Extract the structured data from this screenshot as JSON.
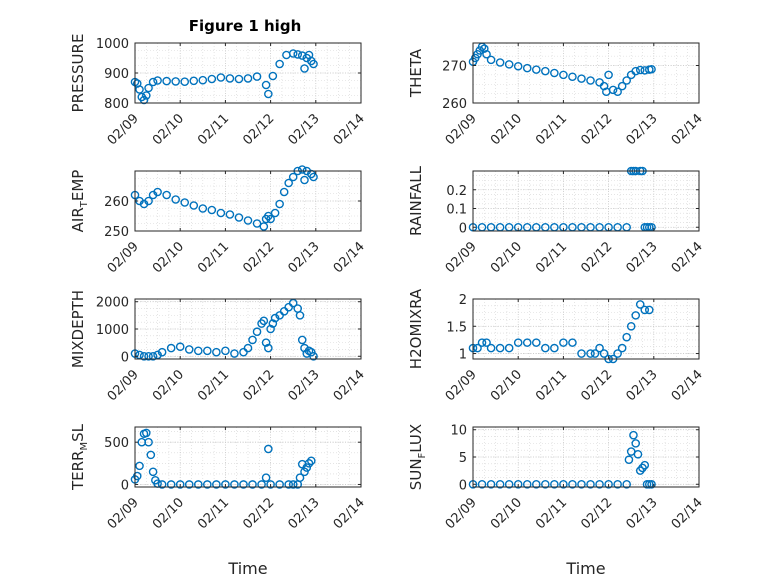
{
  "figure_title": "Figure 1 high",
  "marker_color": "#0072BD",
  "chart_data": [
    {
      "type": "scatter",
      "ylabel": "PRESSURE",
      "ylim": [
        800,
        1000
      ],
      "yticks": [
        800,
        900,
        1000
      ],
      "ytick_labels": [
        "800",
        "900",
        "1000"
      ],
      "xlim": [
        0,
        5
      ],
      "xticks": [
        0,
        1,
        2,
        3,
        4,
        5
      ],
      "xtick_labels": [
        "02/09",
        "02/10",
        "02/11",
        "02/12",
        "02/13",
        "02/14"
      ],
      "xlabel": "",
      "grid": true,
      "marker": "circle",
      "series": [
        {
          "x": [
            0,
            0.05,
            0.1,
            0.15,
            0.2,
            0.25,
            0.3,
            0.4,
            0.5,
            0.7,
            0.9,
            1.1,
            1.3,
            1.5,
            1.7,
            1.9,
            2.1,
            2.3,
            2.5,
            2.7,
            2.9,
            2.95,
            3.05,
            3.2,
            3.35,
            3.5,
            3.6,
            3.7,
            3.75,
            3.8,
            3.85,
            3.9,
            3.95
          ],
          "y": [
            870,
            865,
            845,
            820,
            810,
            825,
            850,
            870,
            875,
            873,
            872,
            871,
            874,
            876,
            880,
            885,
            882,
            880,
            882,
            888,
            860,
            830,
            890,
            930,
            960,
            965,
            962,
            958,
            915,
            950,
            960,
            940,
            930
          ]
        }
      ]
    },
    {
      "type": "scatter",
      "ylabel": "THETA",
      "ylim": [
        260,
        276
      ],
      "yticks": [
        260,
        270
      ],
      "ytick_labels": [
        "260",
        "270"
      ],
      "xlim": [
        0,
        5
      ],
      "xticks": [
        0,
        1,
        2,
        3,
        4,
        5
      ],
      "xtick_labels": [
        "02/09",
        "02/10",
        "02/11",
        "02/12",
        "02/13",
        "02/14"
      ],
      "xlabel": "",
      "grid": true,
      "marker": "circle",
      "series": [
        {
          "x": [
            0,
            0.05,
            0.1,
            0.15,
            0.2,
            0.25,
            0.3,
            0.4,
            0.6,
            0.8,
            1.0,
            1.2,
            1.4,
            1.6,
            1.8,
            2.0,
            2.2,
            2.4,
            2.6,
            2.8,
            2.9,
            2.95,
            3.0,
            3.1,
            3.2,
            3.3,
            3.4,
            3.5,
            3.6,
            3.7,
            3.8,
            3.9,
            3.95
          ],
          "y": [
            271,
            272,
            273,
            274,
            275,
            274.5,
            273,
            271.5,
            270.8,
            270.3,
            269.8,
            269.3,
            268.9,
            268.5,
            268,
            267.5,
            267,
            266.5,
            266,
            265.5,
            264.5,
            263,
            267.5,
            263.5,
            263,
            264.5,
            266,
            267.5,
            268.5,
            268.8,
            268.7,
            268.9,
            269
          ]
        }
      ]
    },
    {
      "type": "scatter",
      "ylabel": "AIR_TEMP",
      "ylim": [
        250,
        270
      ],
      "yticks": [
        250,
        260
      ],
      "ytick_labels": [
        "250",
        "260"
      ],
      "xlim": [
        0,
        5
      ],
      "xticks": [
        0,
        1,
        2,
        3,
        4,
        5
      ],
      "xtick_labels": [
        "02/09",
        "02/10",
        "02/11",
        "02/12",
        "02/13",
        "02/14"
      ],
      "xlabel": "",
      "grid": true,
      "marker": "circle",
      "series": [
        {
          "x": [
            0,
            0.1,
            0.2,
            0.3,
            0.4,
            0.5,
            0.7,
            0.9,
            1.1,
            1.3,
            1.5,
            1.7,
            1.9,
            2.1,
            2.3,
            2.5,
            2.7,
            2.85,
            2.9,
            2.95,
            3.0,
            3.1,
            3.2,
            3.3,
            3.4,
            3.5,
            3.6,
            3.7,
            3.75,
            3.8,
            3.9,
            3.95
          ],
          "y": [
            262,
            260,
            259,
            260,
            262,
            263,
            262,
            260.5,
            259.5,
            258.5,
            257.5,
            257,
            256,
            255.5,
            254.5,
            253.5,
            252.5,
            251.5,
            254,
            255,
            254,
            256,
            259,
            263,
            266,
            268,
            270,
            270.5,
            267,
            270,
            269,
            268
          ]
        }
      ]
    },
    {
      "type": "scatter",
      "ylabel": "RAINFALL",
      "ylim": [
        -0.02,
        0.3
      ],
      "yticks": [
        0,
        0.1,
        0.2
      ],
      "ytick_labels": [
        "0",
        "0.1",
        "0.2"
      ],
      "xlim": [
        0,
        5
      ],
      "xticks": [
        0,
        1,
        2,
        3,
        4,
        5
      ],
      "xtick_labels": [
        "02/09",
        "02/10",
        "02/11",
        "02/12",
        "02/13",
        "02/14"
      ],
      "xlabel": "",
      "grid": true,
      "marker": "circle",
      "series": [
        {
          "x": [
            0,
            0.2,
            0.4,
            0.6,
            0.8,
            1.0,
            1.2,
            1.4,
            1.6,
            1.8,
            2.0,
            2.2,
            2.4,
            2.6,
            2.8,
            3.0,
            3.2,
            3.4,
            3.5,
            3.55,
            3.6,
            3.7,
            3.75,
            3.8,
            3.85,
            3.9,
            3.95
          ],
          "y": [
            0,
            0,
            0,
            0,
            0,
            0,
            0,
            0,
            0,
            0,
            0,
            0,
            0,
            0,
            0,
            0,
            0,
            0,
            0.3,
            0.3,
            0.3,
            0.3,
            0.3,
            0,
            0,
            0,
            0
          ]
        }
      ]
    },
    {
      "type": "scatter",
      "ylabel": "MIXDEPTH",
      "ylim": [
        -100,
        2100
      ],
      "yticks": [
        0,
        1000,
        2000
      ],
      "ytick_labels": [
        "0",
        "1000",
        "2000"
      ],
      "xlim": [
        0,
        5
      ],
      "xticks": [
        0,
        1,
        2,
        3,
        4,
        5
      ],
      "xtick_labels": [
        "02/09",
        "02/10",
        "02/11",
        "02/12",
        "02/13",
        "02/14"
      ],
      "xlabel": "",
      "grid": true,
      "marker": "circle",
      "series": [
        {
          "x": [
            0,
            0.1,
            0.2,
            0.3,
            0.4,
            0.5,
            0.6,
            0.8,
            1.0,
            1.2,
            1.4,
            1.6,
            1.8,
            2.0,
            2.2,
            2.4,
            2.5,
            2.6,
            2.7,
            2.8,
            2.85,
            2.9,
            2.95,
            3.0,
            3.05,
            3.1,
            3.2,
            3.3,
            3.4,
            3.5,
            3.6,
            3.65,
            3.7,
            3.75,
            3.8,
            3.85,
            3.9,
            3.95
          ],
          "y": [
            100,
            50,
            0,
            0,
            0,
            50,
            150,
            300,
            350,
            250,
            200,
            200,
            150,
            200,
            100,
            150,
            300,
            600,
            900,
            1200,
            1300,
            500,
            300,
            1000,
            1200,
            1400,
            1500,
            1650,
            1800,
            1950,
            1750,
            1500,
            600,
            300,
            100,
            200,
            150,
            0
          ]
        }
      ]
    },
    {
      "type": "scatter",
      "ylabel": "H2OMIXRA",
      "ylim": [
        0.9,
        2.0
      ],
      "yticks": [
        1,
        1.5,
        2
      ],
      "ytick_labels": [
        "1",
        "1.5",
        "2"
      ],
      "xlim": [
        0,
        5
      ],
      "xticks": [
        0,
        1,
        2,
        3,
        4,
        5
      ],
      "xtick_labels": [
        "02/09",
        "02/10",
        "02/11",
        "02/12",
        "02/13",
        "02/14"
      ],
      "xlabel": "",
      "grid": true,
      "marker": "circle",
      "series": [
        {
          "x": [
            0,
            0.1,
            0.2,
            0.3,
            0.4,
            0.6,
            0.8,
            1.0,
            1.2,
            1.4,
            1.6,
            1.8,
            2.0,
            2.2,
            2.4,
            2.6,
            2.7,
            2.8,
            2.9,
            3.0,
            3.1,
            3.2,
            3.3,
            3.4,
            3.5,
            3.6,
            3.7,
            3.8,
            3.9
          ],
          "y": [
            1.1,
            1.1,
            1.2,
            1.2,
            1.1,
            1.1,
            1.1,
            1.2,
            1.2,
            1.2,
            1.1,
            1.1,
            1.2,
            1.2,
            1.0,
            1.0,
            1.0,
            1.1,
            1.0,
            0.9,
            0.9,
            1.0,
            1.1,
            1.3,
            1.5,
            1.7,
            1.9,
            1.8,
            1.8
          ]
        }
      ]
    },
    {
      "type": "scatter",
      "ylabel": "TERR_MSL",
      "ylim": [
        -30,
        680
      ],
      "yticks": [
        0,
        500
      ],
      "ytick_labels": [
        "0",
        "500"
      ],
      "xlim": [
        0,
        5
      ],
      "xticks": [
        0,
        1,
        2,
        3,
        4,
        5
      ],
      "xtick_labels": [
        "02/09",
        "02/10",
        "02/11",
        "02/12",
        "02/13",
        "02/14"
      ],
      "xlabel": "Time",
      "grid": true,
      "marker": "circle",
      "series": [
        {
          "x": [
            0,
            0.05,
            0.1,
            0.15,
            0.2,
            0.25,
            0.3,
            0.35,
            0.4,
            0.45,
            0.5,
            0.6,
            0.8,
            1.0,
            1.2,
            1.4,
            1.6,
            1.8,
            2.0,
            2.2,
            2.4,
            2.6,
            2.8,
            2.9,
            2.95,
            3.0,
            3.2,
            3.4,
            3.5,
            3.6,
            3.65,
            3.7,
            3.75,
            3.8,
            3.85,
            3.9
          ],
          "y": [
            60,
            100,
            220,
            500,
            600,
            610,
            500,
            350,
            150,
            50,
            10,
            0,
            0,
            0,
            0,
            0,
            0,
            0,
            0,
            0,
            0,
            0,
            0,
            80,
            420,
            0,
            0,
            0,
            0,
            0,
            80,
            240,
            150,
            200,
            250,
            280
          ]
        }
      ]
    },
    {
      "type": "scatter",
      "ylabel": "SUN_FLUX",
      "ylim": [
        -0.5,
        10.5
      ],
      "yticks": [
        0,
        5,
        10
      ],
      "ytick_labels": [
        "0",
        "5",
        "10"
      ],
      "xlim": [
        0,
        5
      ],
      "xticks": [
        0,
        1,
        2,
        3,
        4,
        5
      ],
      "xtick_labels": [
        "02/09",
        "02/10",
        "02/11",
        "02/12",
        "02/13",
        "02/14"
      ],
      "xlabel": "Time",
      "grid": true,
      "marker": "circle",
      "series": [
        {
          "x": [
            0,
            0.2,
            0.4,
            0.6,
            0.8,
            1.0,
            1.2,
            1.4,
            1.6,
            1.8,
            2.0,
            2.2,
            2.4,
            2.6,
            2.8,
            3.0,
            3.2,
            3.4,
            3.45,
            3.5,
            3.55,
            3.6,
            3.65,
            3.7,
            3.75,
            3.8,
            3.85,
            3.9,
            3.95
          ],
          "y": [
            0,
            0,
            0,
            0,
            0,
            0,
            0,
            0,
            0,
            0,
            0,
            0,
            0,
            0,
            0,
            0,
            0,
            0,
            4.5,
            6,
            9,
            7.5,
            5.5,
            2.5,
            3,
            3.5,
            0,
            0,
            0
          ]
        }
      ]
    }
  ]
}
